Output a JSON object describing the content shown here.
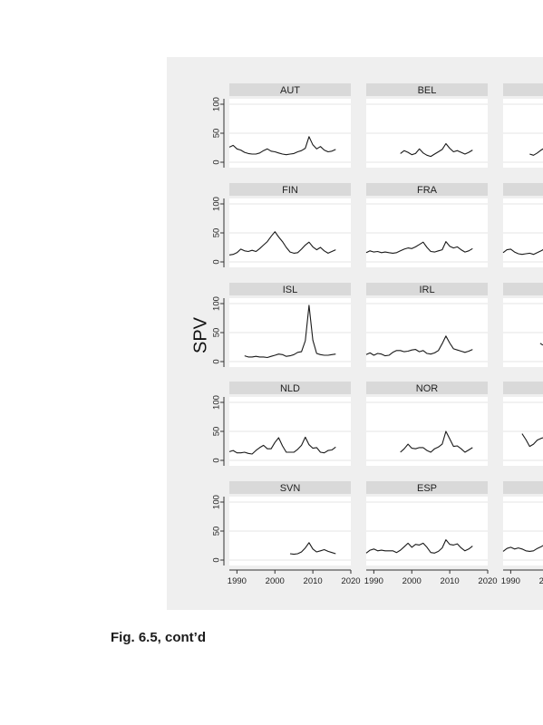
{
  "caption": "Fig. 6.5, cont’d",
  "chart_data": {
    "type": "line",
    "layout": "small-multiples",
    "ylabel": "SPV",
    "ylim": [
      0,
      100
    ],
    "yticks": [
      "0",
      "50",
      "100"
    ],
    "xlim": [
      1988,
      2020
    ],
    "xticks": [
      "1990",
      "2000",
      "2010",
      "2020"
    ],
    "grid": true,
    "panels": [
      {
        "name": "AUT",
        "x": [
          1988,
          1989,
          1990,
          1991,
          1992,
          1993,
          1994,
          1995,
          1996,
          1997,
          1998,
          1999,
          2000,
          2001,
          2002,
          2003,
          2004,
          2005,
          2006,
          2007,
          2008,
          2009,
          2010,
          2011,
          2012,
          2013,
          2014,
          2015,
          2016
        ],
        "y": [
          26,
          29,
          23,
          21,
          17,
          15,
          14,
          14,
          16,
          20,
          23,
          19,
          18,
          16,
          14,
          13,
          14,
          15,
          18,
          20,
          24,
          44,
          30,
          23,
          27,
          21,
          18,
          19,
          22
        ]
      },
      {
        "name": "BEL",
        "x": [
          1997,
          1998,
          1999,
          2000,
          2001,
          2002,
          2003,
          2004,
          2005,
          2006,
          2007,
          2008,
          2009,
          2010,
          2011,
          2012,
          2013,
          2014,
          2015,
          2016
        ],
        "y": [
          15,
          20,
          17,
          13,
          15,
          23,
          16,
          12,
          10,
          14,
          18,
          22,
          32,
          24,
          18,
          20,
          17,
          14,
          17,
          21
        ]
      },
      {
        "name": "",
        "x": [
          1995,
          1996,
          1997,
          1998,
          1999
        ],
        "y": [
          14,
          12,
          16,
          21,
          25
        ]
      },
      {
        "name": "FIN",
        "x": [
          1988,
          1989,
          1990,
          1991,
          1992,
          1993,
          1994,
          1995,
          1996,
          1997,
          1998,
          1999,
          2000,
          2001,
          2002,
          2003,
          2004,
          2005,
          2006,
          2007,
          2008,
          2009,
          2010,
          2011,
          2012,
          2013,
          2014,
          2015,
          2016
        ],
        "y": [
          12,
          13,
          16,
          22,
          19,
          18,
          20,
          18,
          23,
          29,
          35,
          44,
          52,
          43,
          35,
          25,
          17,
          15,
          16,
          22,
          29,
          34,
          26,
          21,
          25,
          19,
          15,
          18,
          21
        ]
      },
      {
        "name": "FRA",
        "x": [
          1988,
          1989,
          1990,
          1991,
          1992,
          1993,
          1994,
          1995,
          1996,
          1997,
          1998,
          1999,
          2000,
          2001,
          2002,
          2003,
          2004,
          2005,
          2006,
          2007,
          2008,
          2009,
          2010,
          2011,
          2012,
          2013,
          2014,
          2015,
          2016
        ],
        "y": [
          16,
          19,
          17,
          18,
          16,
          17,
          16,
          15,
          16,
          19,
          22,
          24,
          23,
          26,
          30,
          34,
          25,
          18,
          17,
          19,
          21,
          35,
          27,
          24,
          26,
          21,
          17,
          19,
          23
        ]
      },
      {
        "name": "",
        "x": [
          1988,
          1989,
          1990,
          1991,
          1992,
          1993,
          1994,
          1995,
          1996,
          1997,
          1998,
          1999
        ],
        "y": [
          16,
          21,
          22,
          17,
          14,
          13,
          14,
          15,
          13,
          16,
          19,
          23
        ]
      },
      {
        "name": "ISL",
        "x": [
          1992,
          1993,
          1994,
          1995,
          1996,
          1997,
          1998,
          1999,
          2000,
          2001,
          2002,
          2003,
          2004,
          2005,
          2006,
          2007,
          2008,
          2009,
          2010,
          2011,
          2012,
          2013,
          2014,
          2015,
          2016
        ],
        "y": [
          10,
          8,
          8,
          9,
          8,
          8,
          7,
          9,
          11,
          13,
          12,
          9,
          10,
          12,
          16,
          17,
          36,
          97,
          37,
          14,
          12,
          11,
          11,
          12,
          13
        ]
      },
      {
        "name": "IRL",
        "x": [
          1988,
          1989,
          1990,
          1991,
          1992,
          1993,
          1994,
          1995,
          1996,
          1997,
          1998,
          1999,
          2000,
          2001,
          2002,
          2003,
          2004,
          2005,
          2006,
          2007,
          2008,
          2009,
          2010,
          2011,
          2012,
          2013,
          2014,
          2015,
          2016
        ],
        "y": [
          12,
          15,
          11,
          14,
          13,
          10,
          11,
          16,
          19,
          19,
          17,
          18,
          20,
          21,
          17,
          19,
          14,
          13,
          15,
          19,
          31,
          44,
          32,
          22,
          20,
          18,
          16,
          18,
          21
        ]
      },
      {
        "name": "",
        "x": [
          1998
        ],
        "y": [
          30
        ]
      },
      {
        "name": "NLD",
        "x": [
          1988,
          1989,
          1990,
          1991,
          1992,
          1993,
          1994,
          1995,
          1996,
          1997,
          1998,
          1999,
          2000,
          2001,
          2002,
          2003,
          2004,
          2005,
          2006,
          2007,
          2008,
          2009,
          2010,
          2011,
          2012,
          2013,
          2014,
          2015,
          2016
        ],
        "y": [
          15,
          17,
          13,
          13,
          14,
          12,
          11,
          17,
          22,
          26,
          20,
          20,
          31,
          39,
          25,
          14,
          14,
          14,
          19,
          26,
          40,
          27,
          21,
          22,
          14,
          13,
          17,
          18,
          23
        ]
      },
      {
        "name": "NOR",
        "x": [
          1997,
          1998,
          1999,
          2000,
          2001,
          2002,
          2003,
          2004,
          2005,
          2006,
          2007,
          2008,
          2009,
          2010,
          2011,
          2012,
          2013,
          2014,
          2015,
          2016
        ],
        "y": [
          14,
          20,
          28,
          21,
          20,
          22,
          22,
          17,
          14,
          20,
          23,
          28,
          50,
          37,
          24,
          25,
          20,
          14,
          18,
          22
        ]
      },
      {
        "name": "",
        "x": [
          1993,
          1994,
          1995,
          1996,
          1997,
          1998,
          1999
        ],
        "y": [
          46,
          36,
          24,
          28,
          35,
          38,
          40
        ]
      },
      {
        "name": "SVN",
        "x": [
          2004,
          2005,
          2006,
          2007,
          2008,
          2009,
          2010,
          2011,
          2012,
          2013,
          2014,
          2015,
          2016
        ],
        "y": [
          11,
          10,
          11,
          14,
          21,
          30,
          19,
          14,
          16,
          18,
          15,
          13,
          11
        ]
      },
      {
        "name": "ESP",
        "x": [
          1988,
          1989,
          1990,
          1991,
          1992,
          1993,
          1994,
          1995,
          1996,
          1997,
          1998,
          1999,
          2000,
          2001,
          2002,
          2003,
          2004,
          2005,
          2006,
          2007,
          2008,
          2009,
          2010,
          2011,
          2012,
          2013,
          2014,
          2015,
          2016
        ],
        "y": [
          12,
          17,
          19,
          16,
          17,
          16,
          16,
          16,
          13,
          17,
          23,
          29,
          22,
          27,
          26,
          29,
          22,
          13,
          12,
          15,
          21,
          35,
          27,
          26,
          28,
          21,
          16,
          19,
          24
        ]
      },
      {
        "name": "",
        "x": [
          1988,
          1989,
          1990,
          1991,
          1992,
          1993,
          1994,
          1995,
          1996,
          1997,
          1998,
          1999
        ],
        "y": [
          15,
          20,
          22,
          19,
          21,
          19,
          16,
          15,
          16,
          20,
          23,
          27
        ]
      }
    ]
  }
}
